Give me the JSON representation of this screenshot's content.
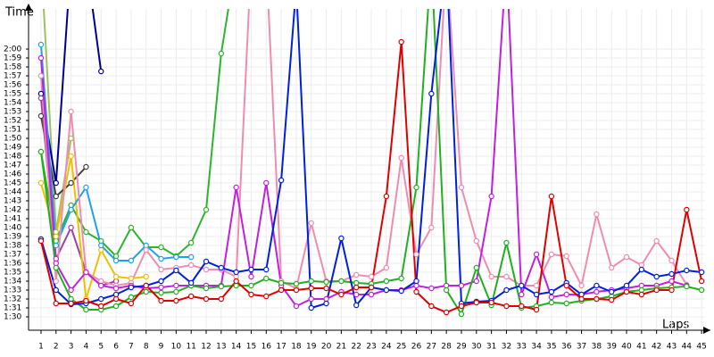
{
  "chart_data": {
    "type": "line",
    "y_label": "Time",
    "x_label": "Laps",
    "x": [
      1,
      2,
      3,
      4,
      5,
      6,
      7,
      8,
      9,
      10,
      11,
      12,
      13,
      14,
      15,
      16,
      17,
      18,
      19,
      20,
      21,
      22,
      23,
      24,
      25,
      26,
      27,
      28,
      29,
      30,
      31,
      32,
      33,
      34,
      35,
      36,
      37,
      38,
      39,
      40,
      41,
      42,
      43,
      44,
      45
    ],
    "xlim": [
      0.2,
      45.2
    ],
    "xticks": [
      1,
      2,
      3,
      4,
      5,
      6,
      7,
      8,
      9,
      10,
      11,
      12,
      13,
      14,
      15,
      16,
      17,
      18,
      19,
      20,
      21,
      22,
      23,
      24,
      25,
      26,
      27,
      28,
      29,
      30,
      31,
      32,
      33,
      34,
      35,
      36,
      37,
      38,
      39,
      40,
      41,
      42,
      43,
      44,
      45
    ],
    "ylim": [
      88.5,
      124.5
    ],
    "yticks": [
      {
        "value": 90,
        "label": "1:30"
      },
      {
        "value": 91,
        "label": "1:31"
      },
      {
        "value": 92,
        "label": "1:32"
      },
      {
        "value": 93,
        "label": "1:33"
      },
      {
        "value": 94,
        "label": "1:34"
      },
      {
        "value": 95,
        "label": "1:35"
      },
      {
        "value": 96,
        "label": "1:36"
      },
      {
        "value": 97,
        "label": "1:37"
      },
      {
        "value": 98,
        "label": "1:38"
      },
      {
        "value": 99,
        "label": "1:39"
      },
      {
        "value": 100,
        "label": "1:40"
      },
      {
        "value": 101,
        "label": "1:41"
      },
      {
        "value": 102,
        "label": "1:42"
      },
      {
        "value": 103,
        "label": "1:43"
      },
      {
        "value": 104,
        "label": "1:44"
      },
      {
        "value": 105,
        "label": "1:45"
      },
      {
        "value": 106,
        "label": "1:46"
      },
      {
        "value": 107,
        "label": "1:47"
      },
      {
        "value": 108,
        "label": "1:48"
      },
      {
        "value": 109,
        "label": "1:49"
      },
      {
        "value": 110,
        "label": "1:50"
      },
      {
        "value": 111,
        "label": "1:51"
      },
      {
        "value": 112,
        "label": "1:52"
      },
      {
        "value": 113,
        "label": "1:53"
      },
      {
        "value": 114,
        "label": "1:54"
      },
      {
        "value": 115,
        "label": "1:55"
      },
      {
        "value": 116,
        "label": "1:56"
      },
      {
        "value": 117,
        "label": "1:57"
      },
      {
        "value": 118,
        "label": "1:58"
      },
      {
        "value": 119,
        "label": "1:59"
      },
      {
        "value": 120,
        "label": "2:00"
      }
    ],
    "grid": true,
    "series": [
      {
        "color": "#2db52d",
        "values": [
          108.5,
          98.5,
          102.5,
          99.5,
          98.5,
          96.8,
          100,
          97.8,
          97.8,
          96.8,
          98.3,
          102,
          119.5,
          130,
          null,
          null,
          null,
          null,
          null,
          null,
          null,
          null,
          null,
          null,
          null,
          null,
          null,
          null,
          null,
          null,
          null,
          null,
          null,
          null,
          null,
          null,
          null,
          null,
          null,
          null,
          null,
          null,
          null,
          null,
          null
        ]
      },
      {
        "color": "#a0c060",
        "values": [
          130,
          99.5,
          110,
          null,
          null,
          null,
          null,
          null,
          null,
          null,
          null,
          null,
          null,
          null,
          null,
          null,
          null,
          null,
          null,
          null,
          null,
          null,
          null,
          null,
          null,
          null,
          null,
          null,
          null,
          null,
          null,
          null,
          null,
          null,
          null,
          null,
          null,
          null,
          null,
          null,
          null,
          null,
          null,
          null,
          null
        ]
      },
      {
        "color": "#000090",
        "values": [
          115,
          105,
          130,
          130,
          117.5,
          null,
          null,
          null,
          null,
          null,
          null,
          null,
          null,
          null,
          null,
          null,
          null,
          null,
          null,
          null,
          null,
          null,
          null,
          null,
          null,
          null,
          null,
          null,
          null,
          null,
          null,
          null,
          null,
          null,
          null,
          null,
          null,
          null,
          null,
          null,
          null,
          null,
          null,
          null,
          null
        ]
      },
      {
        "color": "#404040",
        "values": [
          112.5,
          103.5,
          105,
          106.8,
          null,
          null,
          null,
          null,
          null,
          null,
          null,
          null,
          null,
          null,
          null,
          null,
          null,
          null,
          null,
          null,
          null,
          null,
          null,
          null,
          null,
          null,
          null,
          null,
          null,
          null,
          null,
          null,
          null,
          null,
          null,
          null,
          null,
          null,
          null,
          null,
          null,
          null,
          null,
          null,
          null
        ]
      },
      {
        "color": "#a040a0",
        "values": [
          114.5,
          96.5,
          100,
          95,
          93.5,
          94,
          null,
          null,
          null,
          null,
          null,
          null,
          null,
          null,
          null,
          null,
          null,
          null,
          null,
          null,
          null,
          null,
          null,
          null,
          null,
          null,
          null,
          null,
          null,
          null,
          null,
          null,
          null,
          null,
          null,
          null,
          null,
          null,
          null,
          null,
          null,
          null,
          null,
          null,
          null
        ]
      },
      {
        "color": "#f0c000",
        "values": [
          105,
          99,
          108,
          92,
          97.5,
          94.5,
          94.3,
          94.5,
          null,
          null,
          null,
          null,
          null,
          null,
          null,
          null,
          null,
          null,
          null,
          null,
          null,
          null,
          null,
          null,
          null,
          null,
          null,
          null,
          null,
          null,
          null,
          null,
          null,
          null,
          null,
          null,
          null,
          null,
          null,
          null,
          null,
          null,
          null,
          null,
          null
        ]
      },
      {
        "color": "#20a0f0",
        "values": [
          120.5,
          98,
          102,
          104.5,
          98,
          96.3,
          96.3,
          98,
          96.5,
          96.7,
          96.7,
          null,
          null,
          null,
          null,
          null,
          null,
          null,
          null,
          null,
          null,
          null,
          null,
          null,
          null,
          null,
          null,
          null,
          null,
          null,
          null,
          null,
          null,
          null,
          null,
          null,
          null,
          null,
          null,
          null,
          null,
          null,
          null,
          null,
          null
        ]
      },
      {
        "color": "#f08cb0",
        "values": [
          117,
          94,
          113,
          95,
          94,
          93.5,
          93.8,
          97.5,
          95.3,
          95.5,
          95.8,
          95.3,
          95.3,
          94.5,
          130,
          130,
          94,
          93.2,
          100.5,
          94,
          94,
          94.7,
          94.5,
          95.5,
          107.8,
          97,
          100,
          130,
          104.5,
          98.5,
          94.5,
          94.5,
          93.5,
          93.5,
          97,
          96.8,
          93.5,
          101.5,
          95.5,
          96.7,
          95.8,
          98.5,
          96.3,
          93.6,
          null
        ]
      },
      {
        "color": "#c020e0",
        "values": [
          119,
          96,
          93,
          95,
          93.5,
          93.2,
          93.5,
          93.2,
          93.3,
          93.5,
          93.5,
          93.5,
          93.5,
          104.5,
          94.5,
          105,
          93.5,
          91.2,
          92,
          92,
          92.8,
          92.5,
          92.5,
          93,
          93,
          93.5,
          93.2,
          93.5,
          93.5,
          94,
          103.5,
          130,
          92.5,
          97,
          92.2,
          92.5,
          92.5,
          92.8,
          93,
          93.2,
          93.5,
          93.5,
          94,
          93.5,
          null
        ]
      },
      {
        "color": "#20b020",
        "values": [
          108.5,
          95.5,
          92,
          90.8,
          90.8,
          91.2,
          92.2,
          92.8,
          92.7,
          92.8,
          93.5,
          93.2,
          93.4,
          93.5,
          93.5,
          94.3,
          93.8,
          93.7,
          94,
          93.9,
          94,
          93.8,
          93.7,
          94,
          94.3,
          104.5,
          130,
          93,
          90.3,
          95.5,
          91.3,
          98.3,
          91,
          91.2,
          91.6,
          91.5,
          91.8,
          92,
          92.3,
          92.8,
          93,
          93.2,
          93.3,
          93.4,
          93
        ]
      },
      {
        "color": "#0020e0",
        "values": [
          98.7,
          93,
          91.4,
          91.5,
          92,
          92.5,
          93.3,
          93.5,
          94,
          95.2,
          93.8,
          96.2,
          95.5,
          95,
          95.3,
          95.3,
          105.3,
          127,
          91,
          91.5,
          98.8,
          91.3,
          93.3,
          93,
          92.9,
          94,
          115,
          130,
          91.5,
          91.7,
          91.8,
          93,
          93.5,
          92.5,
          92.8,
          93.8,
          92.5,
          93.5,
          92.8,
          93.5,
          95.3,
          94.5,
          94.8,
          95.2,
          95
        ]
      },
      {
        "color": "#e00000",
        "values": [
          98.5,
          91.5,
          91.5,
          91.8,
          91.2,
          92,
          91.5,
          93.5,
          91.8,
          91.8,
          92.3,
          92,
          92,
          94,
          92.5,
          92.3,
          93,
          93,
          93.2,
          93.2,
          92.5,
          93.3,
          93.3,
          103.5,
          120.8,
          92.8,
          91.2,
          90.5,
          91.2,
          91.6,
          91.6,
          91.2,
          91.2,
          90.8,
          103.5,
          93.5,
          92,
          92,
          91.9,
          92.8,
          92.5,
          93,
          93,
          102,
          94
        ]
      }
    ]
  }
}
